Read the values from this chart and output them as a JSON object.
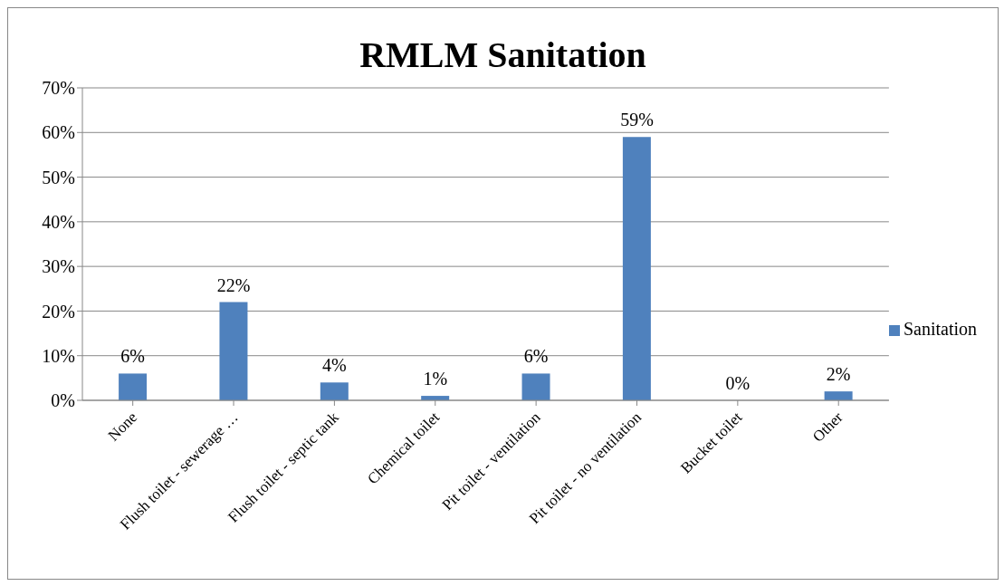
{
  "chart_data": {
    "type": "bar",
    "title": "RMLM Sanitation",
    "categories": [
      "None",
      "Flush toilet - sewerage …",
      "Flush toilet - septic tank",
      "Chemical toilet",
      "Pit toilet - ventilation",
      "Pit toilet - no ventilation",
      "Bucket toilet",
      "Other"
    ],
    "series": [
      {
        "name": "Sanitation",
        "color": "#4f81bd",
        "values": [
          6,
          22,
          4,
          1,
          6,
          59,
          0,
          2
        ]
      }
    ],
    "ylim": [
      0,
      70
    ],
    "yticks": [
      {
        "value": 0,
        "label": "0%"
      },
      {
        "value": 10,
        "label": "10%"
      },
      {
        "value": 20,
        "label": "20%"
      },
      {
        "value": 30,
        "label": "30%"
      },
      {
        "value": 40,
        "label": "40%"
      },
      {
        "value": 50,
        "label": "50%"
      },
      {
        "value": 60,
        "label": "60%"
      },
      {
        "value": 70,
        "label": "70%"
      }
    ],
    "value_labels": [
      "6%",
      "22%",
      "4%",
      "1%",
      "6%",
      "59%",
      "0%",
      "2%"
    ],
    "grid": "y",
    "legend": "right"
  }
}
